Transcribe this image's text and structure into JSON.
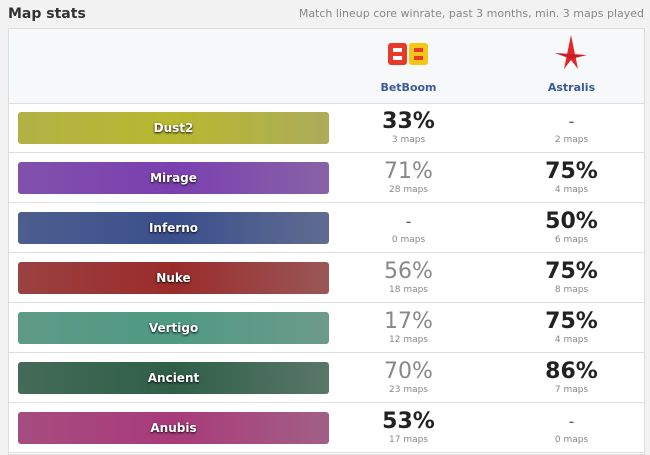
{
  "header": {
    "title": "Map stats",
    "subtitle": "Match lineup core winrate, past 3 months, min. 3 maps played"
  },
  "teams": [
    "BetBoom",
    "Astralis"
  ],
  "rows": [
    {
      "map": "Dust2",
      "team1": {
        "winrate": "33%",
        "maps": "3 maps"
      },
      "team2": {
        "winrate": "-",
        "maps": "2 maps"
      }
    },
    {
      "map": "Mirage",
      "team1": {
        "winrate": "71%",
        "maps": "28 maps"
      },
      "team2": {
        "winrate": "75%",
        "maps": "4 maps"
      }
    },
    {
      "map": "Inferno",
      "team1": {
        "winrate": "-",
        "maps": "0 maps"
      },
      "team2": {
        "winrate": "50%",
        "maps": "6 maps"
      }
    },
    {
      "map": "Nuke",
      "team1": {
        "winrate": "56%",
        "maps": "18 maps"
      },
      "team2": {
        "winrate": "75%",
        "maps": "8 maps"
      }
    },
    {
      "map": "Vertigo",
      "team1": {
        "winrate": "17%",
        "maps": "12 maps"
      },
      "team2": {
        "winrate": "75%",
        "maps": "4 maps"
      }
    },
    {
      "map": "Ancient",
      "team1": {
        "winrate": "70%",
        "maps": "23 maps"
      },
      "team2": {
        "winrate": "86%",
        "maps": "7 maps"
      }
    },
    {
      "map": "Anubis",
      "team1": {
        "winrate": "53%",
        "maps": "17 maps"
      },
      "team2": {
        "winrate": "-",
        "maps": "0 maps"
      }
    }
  ]
}
